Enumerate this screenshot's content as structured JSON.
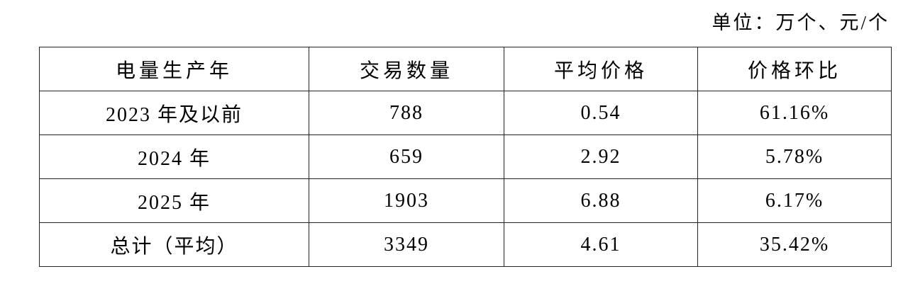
{
  "unit_label": "单位：万个、元/个",
  "table": {
    "headers": [
      "电量生产年",
      "交易数量",
      "平均价格",
      "价格环比"
    ],
    "rows": [
      [
        "2023 年及以前",
        "788",
        "0.54",
        "61.16%"
      ],
      [
        "2024 年",
        "659",
        "2.92",
        "5.78%"
      ],
      [
        "2025 年",
        "1903",
        "6.88",
        "6.17%"
      ],
      [
        "总计（平均）",
        "3349",
        "4.61",
        "35.42%"
      ]
    ]
  }
}
